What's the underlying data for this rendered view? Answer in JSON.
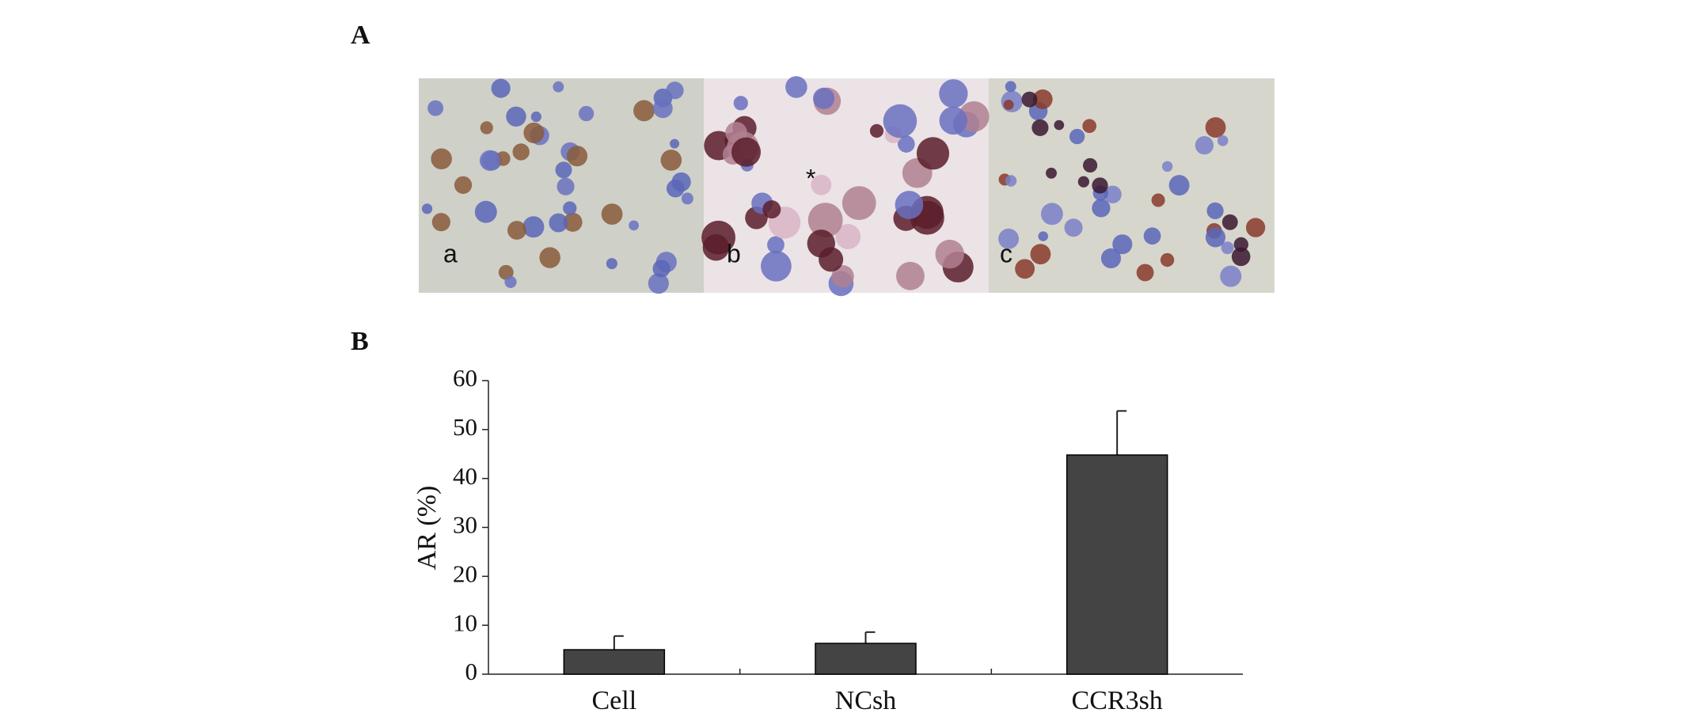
{
  "panel_labels": [
    "A",
    "B"
  ],
  "image_labels": [
    "a",
    "b",
    "c"
  ],
  "image_annotation": "*",
  "chart_data": {
    "type": "bar",
    "ylabel": "AR (%)",
    "categories": [
      "Cell",
      "NCsh",
      "CCR3sh"
    ],
    "values": [
      5,
      6.3,
      44.8
    ],
    "errors": [
      2.8,
      2.3,
      9
    ],
    "color": "#444444",
    "ylim": [
      0,
      60
    ],
    "yticks": [
      0,
      10,
      20,
      30,
      40,
      50,
      60
    ],
    "grid": false
  }
}
